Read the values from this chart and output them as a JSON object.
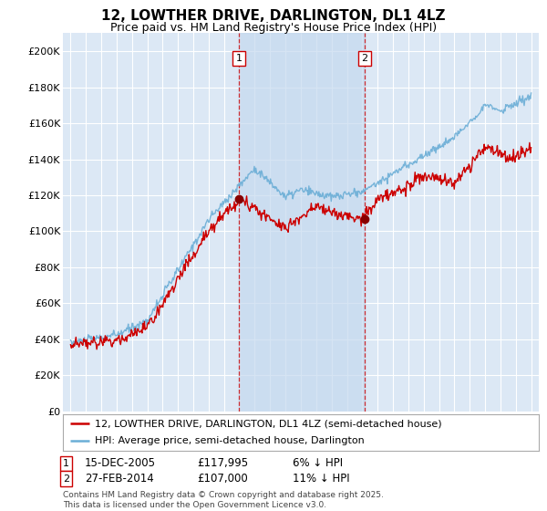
{
  "title": "12, LOWTHER DRIVE, DARLINGTON, DL1 4LZ",
  "subtitle": "Price paid vs. HM Land Registry's House Price Index (HPI)",
  "title_fontsize": 11,
  "subtitle_fontsize": 9,
  "ylabel_ticks": [
    "£0",
    "£20K",
    "£40K",
    "£60K",
    "£80K",
    "£100K",
    "£120K",
    "£140K",
    "£160K",
    "£180K",
    "£200K"
  ],
  "ytick_values": [
    0,
    20000,
    40000,
    60000,
    80000,
    100000,
    120000,
    140000,
    160000,
    180000,
    200000
  ],
  "ylim": [
    0,
    210000
  ],
  "xlim_start": 1994.5,
  "xlim_end": 2025.5,
  "xticks": [
    1995,
    1996,
    1997,
    1998,
    1999,
    2000,
    2001,
    2002,
    2003,
    2004,
    2005,
    2006,
    2007,
    2008,
    2009,
    2010,
    2011,
    2012,
    2013,
    2014,
    2015,
    2016,
    2017,
    2018,
    2019,
    2020,
    2021,
    2022,
    2023,
    2024,
    2025
  ],
  "background_color": "#ffffff",
  "plot_bg_color": "#dce8f5",
  "grid_color": "#ffffff",
  "shade_color": "#c5d9ee",
  "hpi_line_color": "#6baed6",
  "price_line_color": "#cc0000",
  "sale1_x": 2005.96,
  "sale1_y": 117995,
  "sale1_label": "1",
  "sale2_x": 2014.16,
  "sale2_y": 107000,
  "sale2_label": "2",
  "vline_color": "#cc0000",
  "marker_color": "#880000",
  "legend_line1": "12, LOWTHER DRIVE, DARLINGTON, DL1 4LZ (semi-detached house)",
  "legend_line2": "HPI: Average price, semi-detached house, Darlington",
  "annotation1_date": "15-DEC-2005",
  "annotation1_price": "£117,995",
  "annotation1_hpi": "6% ↓ HPI",
  "annotation2_date": "27-FEB-2014",
  "annotation2_price": "£107,000",
  "annotation2_hpi": "11% ↓ HPI",
  "footer": "Contains HM Land Registry data © Crown copyright and database right 2025.\nThis data is licensed under the Open Government Licence v3.0."
}
